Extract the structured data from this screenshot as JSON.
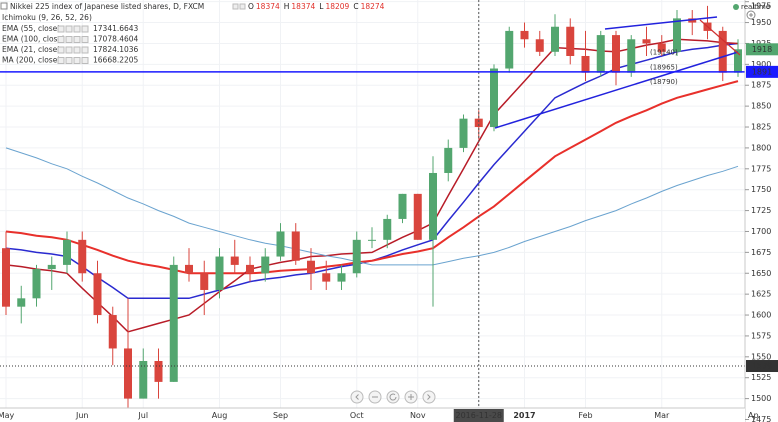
{
  "chart_data": {
    "type": "candlestick",
    "title": "Nikkei 225 index of Japanese listed shares, D, FXCM",
    "ohlc_readout": [
      {
        "label": "O",
        "value": 18374
      },
      {
        "label": "H",
        "value": 18374
      },
      {
        "label": "L",
        "value": 18209
      },
      {
        "label": "C",
        "value": 18274
      }
    ],
    "hidden_indicator": "Ichimoku (9, 26, 52, 26)",
    "status": "realtime",
    "categories": [
      "May",
      null,
      null,
      null,
      null,
      "Jun",
      null,
      null,
      null,
      "Jul",
      null,
      null,
      null,
      null,
      "Aug",
      null,
      null,
      null,
      "Sep",
      null,
      null,
      null,
      null,
      "Oct",
      null,
      null,
      null,
      "Nov",
      null,
      null,
      null,
      "2016-11-28",
      null,
      null,
      "2017",
      null,
      null,
      null,
      "Feb",
      null,
      null,
      null,
      null,
      "Mar",
      null,
      null,
      null,
      null,
      null,
      "Ap"
    ],
    "open": [
      1680,
      1610,
      1620,
      1655,
      1660,
      1690,
      1650,
      1600,
      1560,
      1500,
      1545,
      1520,
      1660,
      1650,
      1630,
      1670,
      1660,
      1650,
      1670,
      1700,
      1665,
      1650,
      1640,
      1650,
      1690,
      1690,
      1715,
      1745,
      1690,
      1770,
      1800,
      1835,
      1825,
      1895,
      1940,
      1930,
      1915,
      1945,
      1910,
      1890,
      1935,
      1890,
      1930,
      1925,
      1915,
      1955,
      1950,
      1940,
      1890,
      null
    ],
    "high": [
      1700,
      1635,
      1660,
      1670,
      1700,
      1700,
      1665,
      1610,
      1620,
      1560,
      1560,
      1670,
      1680,
      1665,
      1680,
      1690,
      1670,
      1680,
      1710,
      1710,
      1680,
      1665,
      1660,
      1700,
      1705,
      1720,
      1745,
      1745,
      1790,
      1810,
      1840,
      1845,
      1900,
      1945,
      1950,
      1940,
      1960,
      1955,
      1940,
      1940,
      1940,
      1935,
      1945,
      1935,
      1965,
      1965,
      1970,
      1945,
      1930,
      null
    ],
    "low": [
      1600,
      1590,
      1610,
      1630,
      1650,
      1640,
      1590,
      1540,
      1480,
      1500,
      1500,
      1520,
      1640,
      1600,
      1620,
      1650,
      1640,
      1640,
      1665,
      1660,
      1630,
      1630,
      1630,
      1645,
      1680,
      1680,
      1710,
      1690,
      1610,
      1760,
      1795,
      1810,
      1820,
      1890,
      1920,
      1910,
      1910,
      1900,
      1880,
      1885,
      1875,
      1885,
      1910,
      1910,
      1910,
      1935,
      1930,
      1880,
      1885,
      null
    ],
    "close": [
      1610,
      1620,
      1655,
      1660,
      1690,
      1650,
      1600,
      1560,
      1500,
      1545,
      1520,
      1660,
      1650,
      1630,
      1670,
      1660,
      1650,
      1670,
      1700,
      1665,
      1650,
      1640,
      1650,
      1690,
      1690,
      1715,
      1745,
      1690,
      1770,
      1800,
      1835,
      1825,
      1895,
      1940,
      1930,
      1915,
      1945,
      1910,
      1890,
      1935,
      1890,
      1930,
      1925,
      1915,
      1955,
      1950,
      1940,
      1890,
      1918,
      null
    ],
    "up_color": "#53a66f",
    "down_color": "#d9453d",
    "series": [
      {
        "name": "EMA (55, close)",
        "color": "#2a2ad0",
        "readout": 17341.6643,
        "values": [
          1680,
          1678,
          1675,
          1673,
          1670,
          1658,
          1645,
          1633,
          1620,
          1620,
          1620,
          1620,
          1620,
          1625,
          1630,
          1635,
          1640,
          1643,
          1645,
          1648,
          1650,
          1654,
          1658,
          1661,
          1665,
          1671,
          1678,
          1684,
          1690,
          1713,
          1735,
          1758,
          1780,
          1800,
          1820,
          1840,
          1860,
          1869,
          1878,
          1886,
          1895,
          1900,
          1905,
          1910,
          1915,
          1918,
          1920,
          1923,
          1925,
          null
        ]
      },
      {
        "name": "EMA (100, close)",
        "color": "#e8302b",
        "readout": 17078.4604,
        "values": [
          1700,
          1698,
          1695,
          1693,
          1690,
          1684,
          1678,
          1671,
          1665,
          1661,
          1658,
          1654,
          1650,
          1650,
          1650,
          1650,
          1650,
          1651,
          1653,
          1654,
          1655,
          1658,
          1660,
          1663,
          1665,
          1669,
          1673,
          1676,
          1680,
          1693,
          1705,
          1718,
          1730,
          1745,
          1760,
          1775,
          1790,
          1800,
          1810,
          1820,
          1830,
          1838,
          1845,
          1853,
          1860,
          1865,
          1870,
          1875,
          1880,
          null
        ]
      },
      {
        "name": "EMA (21, close)",
        "color": "#b81c28",
        "readout": 17824.1036,
        "values": [
          1660,
          1658,
          1655,
          1653,
          1650,
          1632,
          1615,
          1598,
          1580,
          1585,
          1590,
          1595,
          1600,
          1614,
          1628,
          1641,
          1655,
          1659,
          1663,
          1666,
          1670,
          1671,
          1673,
          1674,
          1675,
          1684,
          1693,
          1701,
          1710,
          1743,
          1775,
          1808,
          1840,
          1860,
          1880,
          1900,
          1920,
          1919,
          1918,
          1916,
          1915,
          1919,
          1923,
          1926,
          1930,
          1929,
          1928,
          1926,
          1925,
          null
        ]
      },
      {
        "name": "MA (200, close)",
        "color": "#6aa3cf",
        "readout": 16668.2205,
        "values": [
          1800,
          1794,
          1788,
          1781,
          1775,
          1766,
          1758,
          1749,
          1740,
          1733,
          1725,
          1718,
          1710,
          1705,
          1700,
          1695,
          1690,
          1686,
          1683,
          1679,
          1675,
          1671,
          1668,
          1664,
          1660,
          1660,
          1660,
          1660,
          1660,
          1664,
          1668,
          1671,
          1675,
          1681,
          1688,
          1694,
          1700,
          1706,
          1713,
          1719,
          1725,
          1733,
          1740,
          1748,
          1755,
          1761,
          1767,
          1772,
          1778,
          null
        ]
      }
    ],
    "price_lines": [
      {
        "value": 1891,
        "color": "#1a1aff"
      },
      {
        "value": 1539,
        "color": "#333333"
      }
    ],
    "annotations": [
      {
        "label": "(19140)",
        "value": 1914,
        "color": "#3a3ad0"
      },
      {
        "label": "(18965)",
        "value": 1896.5,
        "color": "#d04070"
      },
      {
        "label": "(18790)",
        "value": 1879,
        "color": "#d03030"
      }
    ],
    "ylim": [
      1472,
      1977
    ],
    "yticks": [
      1475,
      1500,
      1525,
      1550,
      1575,
      1600,
      1625,
      1650,
      1675,
      1700,
      1725,
      1750,
      1775,
      1800,
      1825,
      1850,
      1875,
      1900,
      1925,
      1950,
      1975
    ],
    "grid": true
  }
}
